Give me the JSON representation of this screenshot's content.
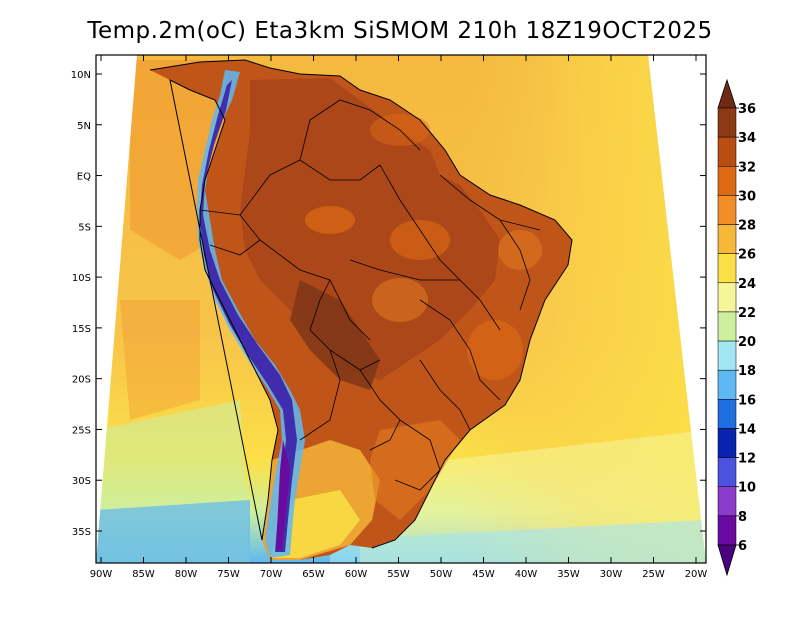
{
  "title": "Temp.2m(oC) Eta3km SiSMOM 210h 18Z19OCT2025",
  "map": {
    "lat_labels": [
      "10N",
      "5N",
      "EQ",
      "5S",
      "10S",
      "15S",
      "20S",
      "25S",
      "30S",
      "35S"
    ],
    "lon_labels": [
      "90W",
      "85W",
      "80W",
      "75W",
      "70W",
      "65W",
      "60W",
      "55W",
      "50W",
      "45W",
      "40W",
      "35W",
      "30W",
      "25W",
      "20W"
    ],
    "lat_values": [
      10,
      5,
      0,
      -5,
      -10,
      -15,
      -20,
      -25,
      -30,
      -35
    ],
    "lon_values": [
      -90,
      -85,
      -80,
      -75,
      -70,
      -65,
      -60,
      -55,
      -50,
      -45,
      -40,
      -35,
      -30,
      -25,
      -20
    ]
  },
  "colorbar": {
    "labels": [
      "36",
      "34",
      "32",
      "30",
      "28",
      "26",
      "24",
      "22",
      "20",
      "18",
      "16",
      "14",
      "12",
      "10",
      "8",
      "6"
    ],
    "values": [
      36,
      34,
      32,
      30,
      28,
      26,
      24,
      22,
      20,
      18,
      16,
      14,
      12,
      10,
      8,
      6
    ],
    "colors": [
      "#6e2a12",
      "#8c3a14",
      "#b84e12",
      "#dd6a14",
      "#f08f2a",
      "#f6b838",
      "#fbe047",
      "#f5f59a",
      "#cdef9e",
      "#a2e6f4",
      "#5fb8f2",
      "#1f6ee0",
      "#0a22b0",
      "#4a52de",
      "#8a3cc8",
      "#6a0aa0",
      "#4b0082"
    ]
  },
  "colors": {
    "ocean_warm": "#f7c24a",
    "ocean_cool": "#fbe047",
    "land_hot": "#c0551a",
    "land_very_hot": "#7a3416",
    "andes": "#3b1fa8"
  }
}
